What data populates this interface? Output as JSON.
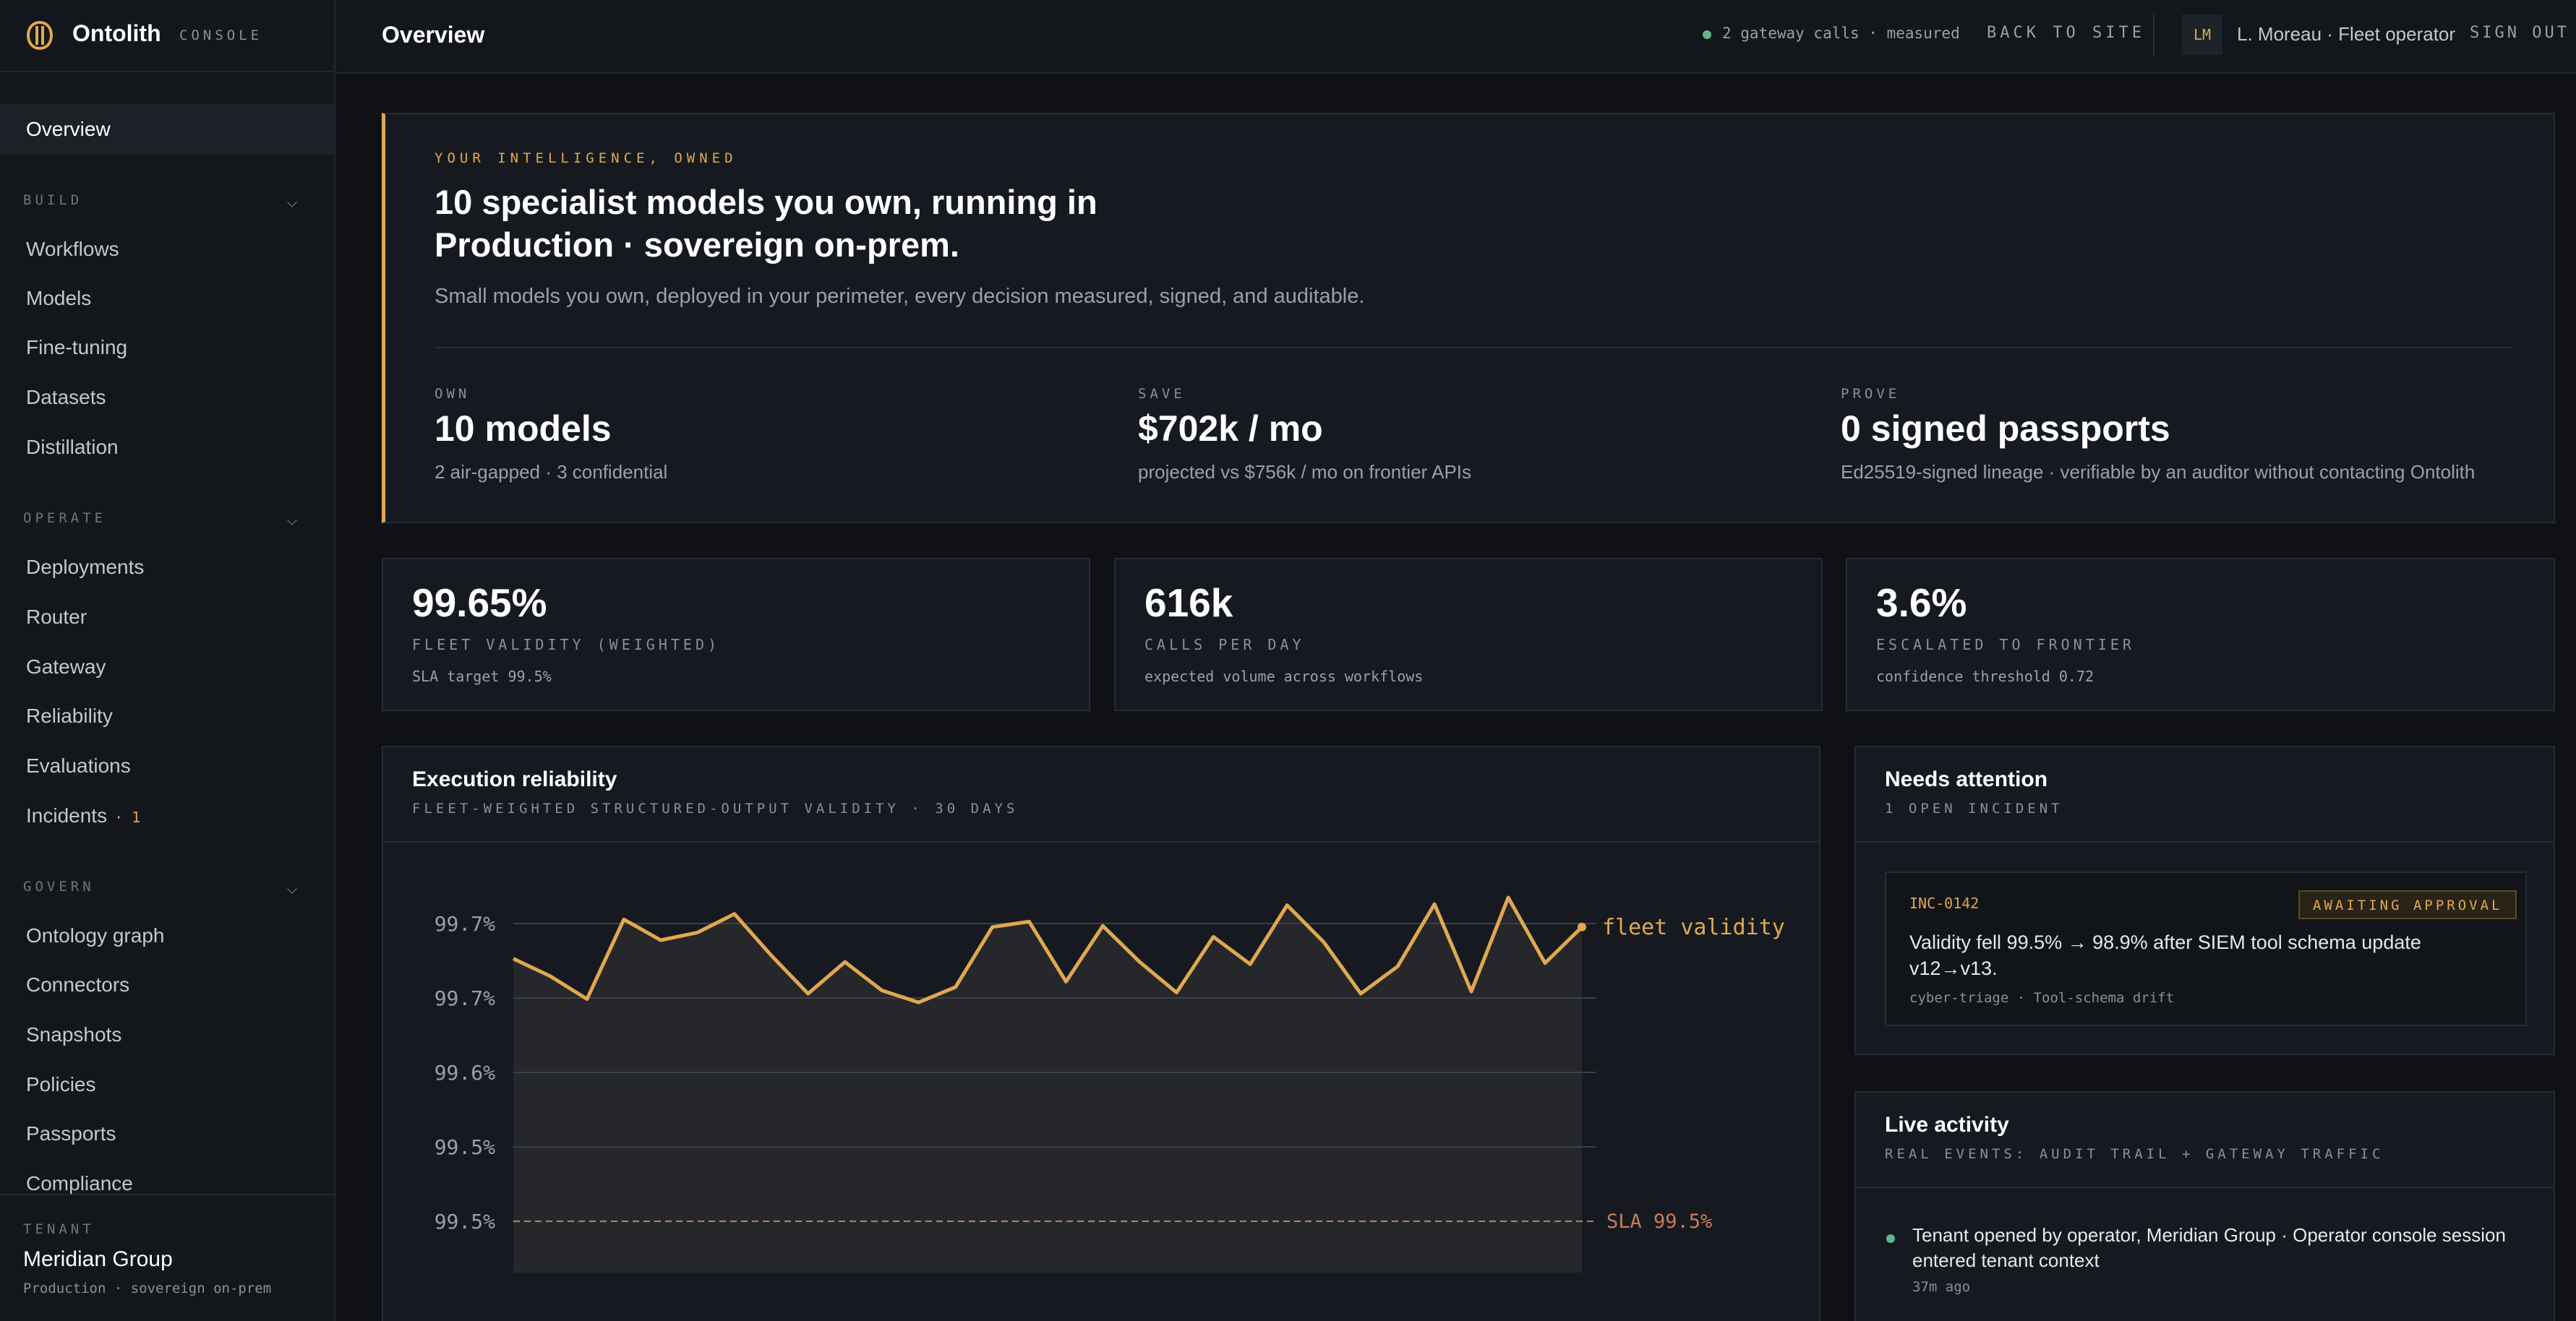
{
  "brand": {
    "name": "Ontolith",
    "tag": "CONSOLE"
  },
  "sidebar": {
    "overview": "Overview",
    "sections": [
      {
        "title": "BUILD",
        "items": [
          "Workflows",
          "Models",
          "Fine-tuning",
          "Datasets",
          "Distillation"
        ]
      },
      {
        "title": "OPERATE",
        "items": [
          "Deployments",
          "Router",
          "Gateway",
          "Reliability",
          "Evaluations",
          "Incidents"
        ]
      },
      {
        "title": "GOVERN",
        "items": [
          "Ontology graph",
          "Connectors",
          "Snapshots",
          "Policies",
          "Passports",
          "Compliance"
        ]
      }
    ],
    "incidents_count": "· 1",
    "tenant": {
      "label": "TENANT",
      "name": "Meridian Group",
      "sub": "Production · sovereign on-prem"
    }
  },
  "topbar": {
    "title": "Overview",
    "gateway_status": "2 gateway calls · measured",
    "back_label": "BACK TO SITE",
    "avatar_initials": "LM",
    "user": "L. Moreau · Fleet operator",
    "sign_out": "SIGN OUT"
  },
  "hero": {
    "eyebrow": "YOUR INTELLIGENCE, OWNED",
    "title": "10 specialist models you own, running in Production · sovereign on-prem.",
    "subtitle": "Small models you own, deployed in your perimeter, every decision measured, signed, and auditable.",
    "stats": [
      {
        "label": "OWN",
        "value": "10 models",
        "sub": "2 air-gapped · 3 confidential"
      },
      {
        "label": "SAVE",
        "value": "$702k / mo",
        "sub": "projected vs $756k / mo on frontier APIs"
      },
      {
        "label": "PROVE",
        "value": "0 signed passports",
        "sub": "Ed25519-signed lineage · verifiable by an auditor without contacting Ontolith"
      }
    ]
  },
  "kpis": [
    {
      "value": "99.65%",
      "label": "FLEET VALIDITY (WEIGHTED)",
      "sub": "SLA target 99.5%"
    },
    {
      "value": "616k",
      "label": "CALLS PER DAY",
      "sub": "expected volume across workflows"
    },
    {
      "value": "3.6%",
      "label": "ESCALATED TO FRONTIER",
      "sub": "confidence threshold 0.72"
    }
  ],
  "reliability": {
    "title": "Execution reliability",
    "subtitle": "FLEET-WEIGHTED STRUCTURED-OUTPUT VALIDITY · 30 DAYS"
  },
  "attention": {
    "title": "Needs attention",
    "subtitle": "1 OPEN INCIDENT",
    "incident": {
      "id": "INC-0142",
      "status": "AWAITING APPROVAL",
      "text": "Validity fell 99.5% → 98.9% after SIEM tool schema update v12→v13.",
      "meta": "cyber-triage · Tool-schema drift"
    }
  },
  "activity": {
    "title": "Live activity",
    "subtitle": "REAL EVENTS: AUDIT TRAIL + GATEWAY TRAFFIC",
    "event": "Tenant opened by operator, Meridian Group · Operator console session entered tenant context",
    "time": "37m ago"
  },
  "colors": {
    "accent": "#e0a84e",
    "ok": "#62b58f",
    "sla": "#c97b5a",
    "bg": "#0f1114",
    "panel": "#161a20"
  },
  "chart_data": {
    "type": "area",
    "title": "Execution reliability",
    "subtitle": "FLEET-WEIGHTED STRUCTURED-OUTPUT VALIDITY · 30 DAYS",
    "yticks": [
      "99.7%",
      "99.7%",
      "99.6%",
      "99.5%",
      "99.5%"
    ],
    "ylim": [
      99.46,
      99.74
    ],
    "series": [
      {
        "name": "fleet validity",
        "values": [
          99.691,
          99.675,
          99.654,
          99.727,
          99.708,
          99.715,
          99.732,
          99.694,
          99.659,
          99.688,
          99.662,
          99.651,
          99.665,
          99.72,
          99.725,
          99.67,
          99.721,
          99.688,
          99.66,
          99.711,
          99.686,
          99.74,
          99.706,
          99.659,
          99.684,
          99.741,
          99.661,
          99.747,
          99.687,
          99.72
        ]
      }
    ],
    "reference_line": {
      "label": "SLA 99.5%",
      "value": 99.5
    },
    "grid": true
  }
}
